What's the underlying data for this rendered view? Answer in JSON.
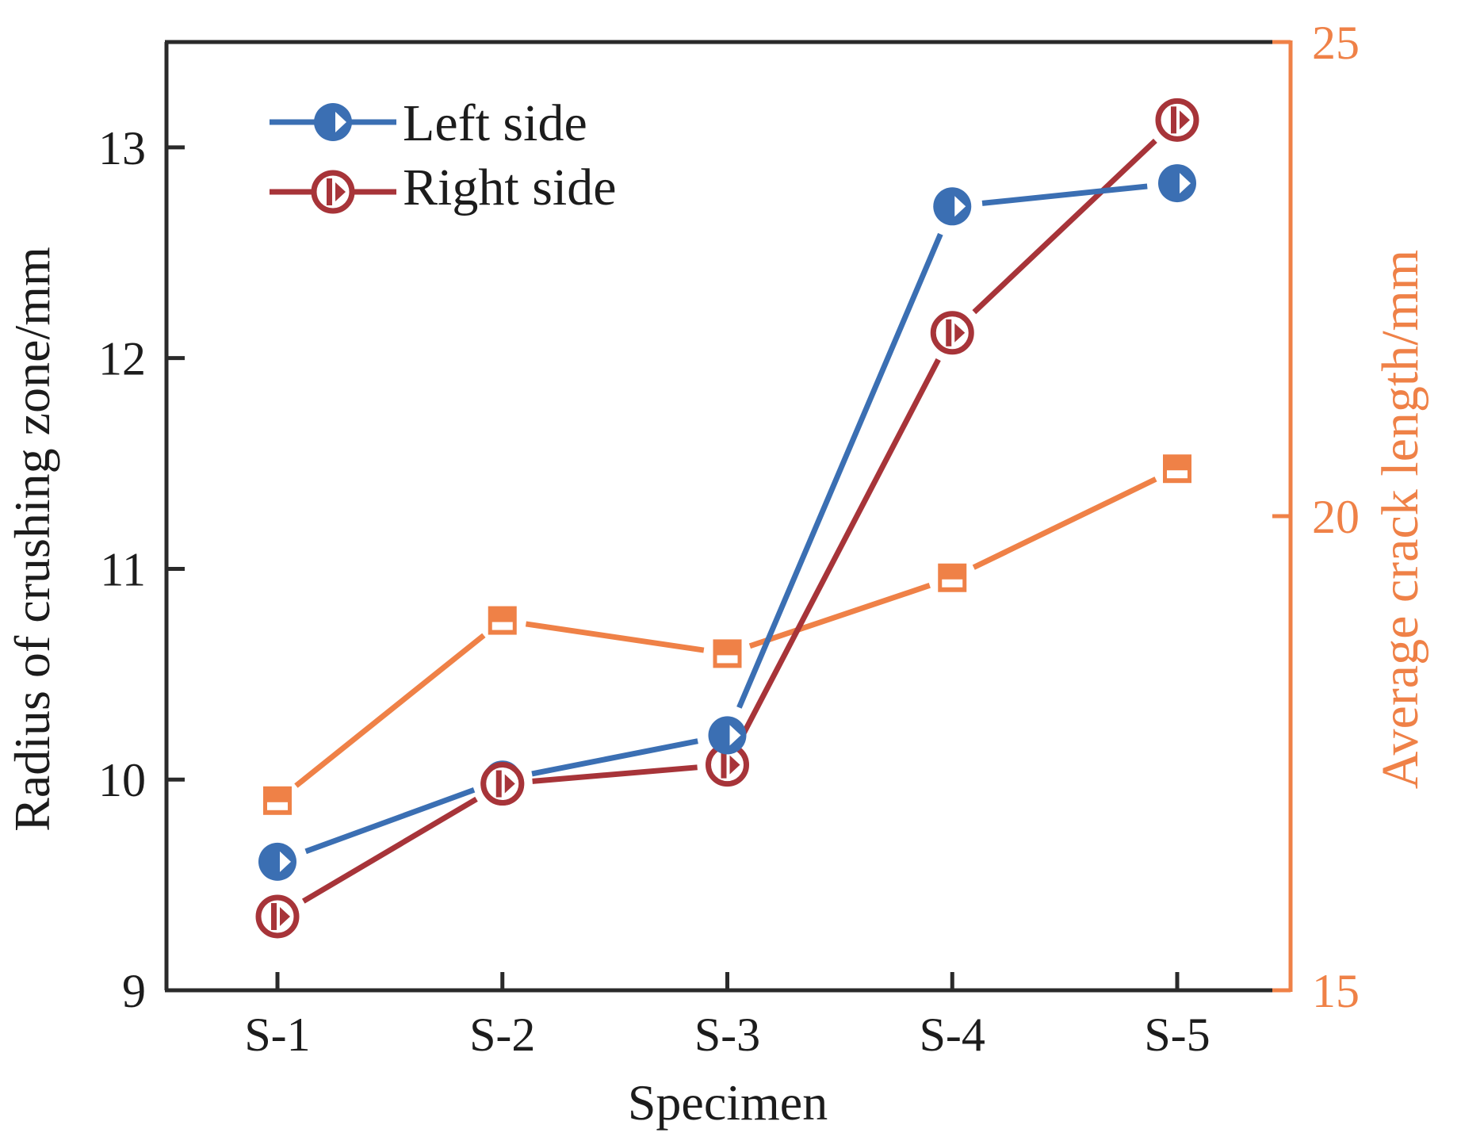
{
  "page": {
    "background": "#FFFFFF"
  },
  "colors": {
    "axis": "#2A2A2A",
    "text": "#1C1C1C",
    "left_series": "#3B6FB3",
    "right_series": "#A73439",
    "avg_series": "#EF8147"
  },
  "chart_data": {
    "type": "line",
    "categories": [
      "S-1",
      "S-2",
      "S-3",
      "S-4",
      "S-5"
    ],
    "xlabel": "Specimen",
    "ylabel_left": "Radius of crushing zone/mm",
    "ylabel_right": "Average crack length/mm",
    "y_left_ticks": [
      "9",
      "10",
      "11",
      "12",
      "13"
    ],
    "y_right_ticks": [
      "15",
      "20",
      "25"
    ],
    "y_left_range": [
      9,
      13.5
    ],
    "y_right_range": [
      15,
      25
    ],
    "grid": false,
    "legend_position": "upper-left",
    "series": [
      {
        "name": "Left side",
        "axis": "left",
        "color_key": "left_series",
        "marker": "circle-right-triangle-filled",
        "in_legend": true,
        "values": [
          9.61,
          10.0,
          10.21,
          12.72,
          12.83
        ]
      },
      {
        "name": "Right side",
        "axis": "left",
        "color_key": "right_series",
        "marker": "circle-right-triangle-open",
        "in_legend": true,
        "values": [
          9.35,
          9.98,
          10.07,
          12.12,
          13.13
        ]
      },
      {
        "name": "Average crack length",
        "axis": "right",
        "color_key": "avg_series",
        "marker": "square-bottom-open",
        "in_legend": false,
        "values": [
          17.0,
          18.9,
          18.55,
          19.35,
          20.5
        ]
      }
    ]
  }
}
